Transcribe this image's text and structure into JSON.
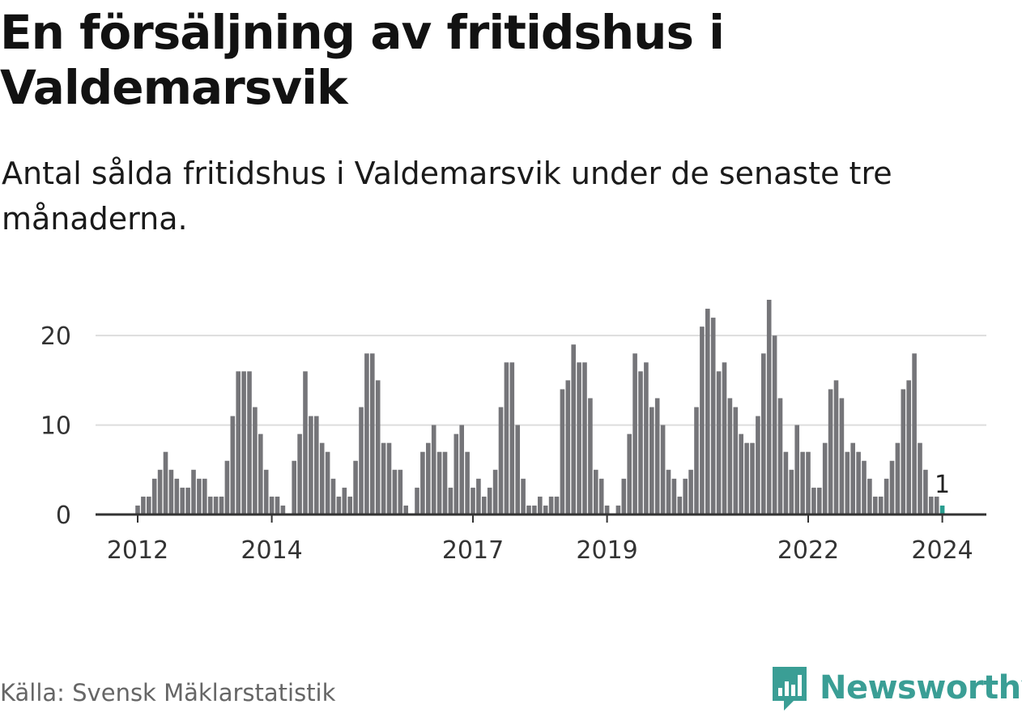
{
  "header": {
    "title": "En försäljning av fritidshus i Valdemarsvik",
    "subtitle": "Antal sålda fritidshus i Valdemarsvik under de senaste tre månaderna."
  },
  "footer": {
    "source": "Källa: Svensk Mäklarstatistik",
    "brand": "Newsworthy"
  },
  "colors": {
    "bar": "#757579",
    "highlight": "#2a9d8f",
    "grid": "#dddddd",
    "axis": "#333333",
    "brand": "#3a9e95"
  },
  "chart_data": {
    "type": "bar",
    "title": "En försäljning av fritidshus i Valdemarsvik",
    "subtitle": "Antal sålda fritidshus i Valdemarsvik under de senaste tre månaderna.",
    "xlabel": "",
    "ylabel": "",
    "ylim": [
      0,
      24
    ],
    "yticks": [
      0,
      10,
      20
    ],
    "grid": true,
    "start": "2011-12",
    "x_tick_labels": [
      {
        "label": "2012",
        "index": 0
      },
      {
        "label": "2014",
        "index": 24
      },
      {
        "label": "2017",
        "index": 60
      },
      {
        "label": "2019",
        "index": 84
      },
      {
        "label": "2022",
        "index": 120
      },
      {
        "label": "2024",
        "index": 144
      }
    ],
    "values": [
      1,
      2,
      2,
      4,
      5,
      7,
      5,
      4,
      3,
      3,
      5,
      4,
      4,
      2,
      2,
      2,
      6,
      11,
      16,
      16,
      16,
      12,
      9,
      5,
      2,
      2,
      1,
      0,
      6,
      9,
      16,
      11,
      11,
      8,
      7,
      4,
      2,
      3,
      2,
      6,
      12,
      18,
      18,
      15,
      8,
      8,
      5,
      5,
      1,
      0,
      3,
      7,
      8,
      10,
      7,
      7,
      3,
      9,
      10,
      7,
      3,
      4,
      2,
      3,
      5,
      12,
      17,
      17,
      10,
      4,
      1,
      1,
      2,
      1,
      2,
      2,
      14,
      15,
      19,
      17,
      17,
      13,
      5,
      4,
      1,
      0,
      1,
      4,
      9,
      18,
      16,
      17,
      12,
      13,
      10,
      5,
      4,
      2,
      4,
      5,
      12,
      21,
      23,
      22,
      16,
      17,
      13,
      12,
      9,
      8,
      8,
      11,
      18,
      24,
      20,
      13,
      7,
      5,
      10,
      7,
      7,
      3,
      3,
      8,
      14,
      15,
      13,
      7,
      8,
      7,
      6,
      4,
      2,
      2,
      4,
      6,
      8,
      14,
      15,
      18,
      8,
      5,
      2,
      2,
      1
    ],
    "highlight_index": 144,
    "annotations": [
      {
        "text": "1",
        "index": 144
      }
    ]
  }
}
